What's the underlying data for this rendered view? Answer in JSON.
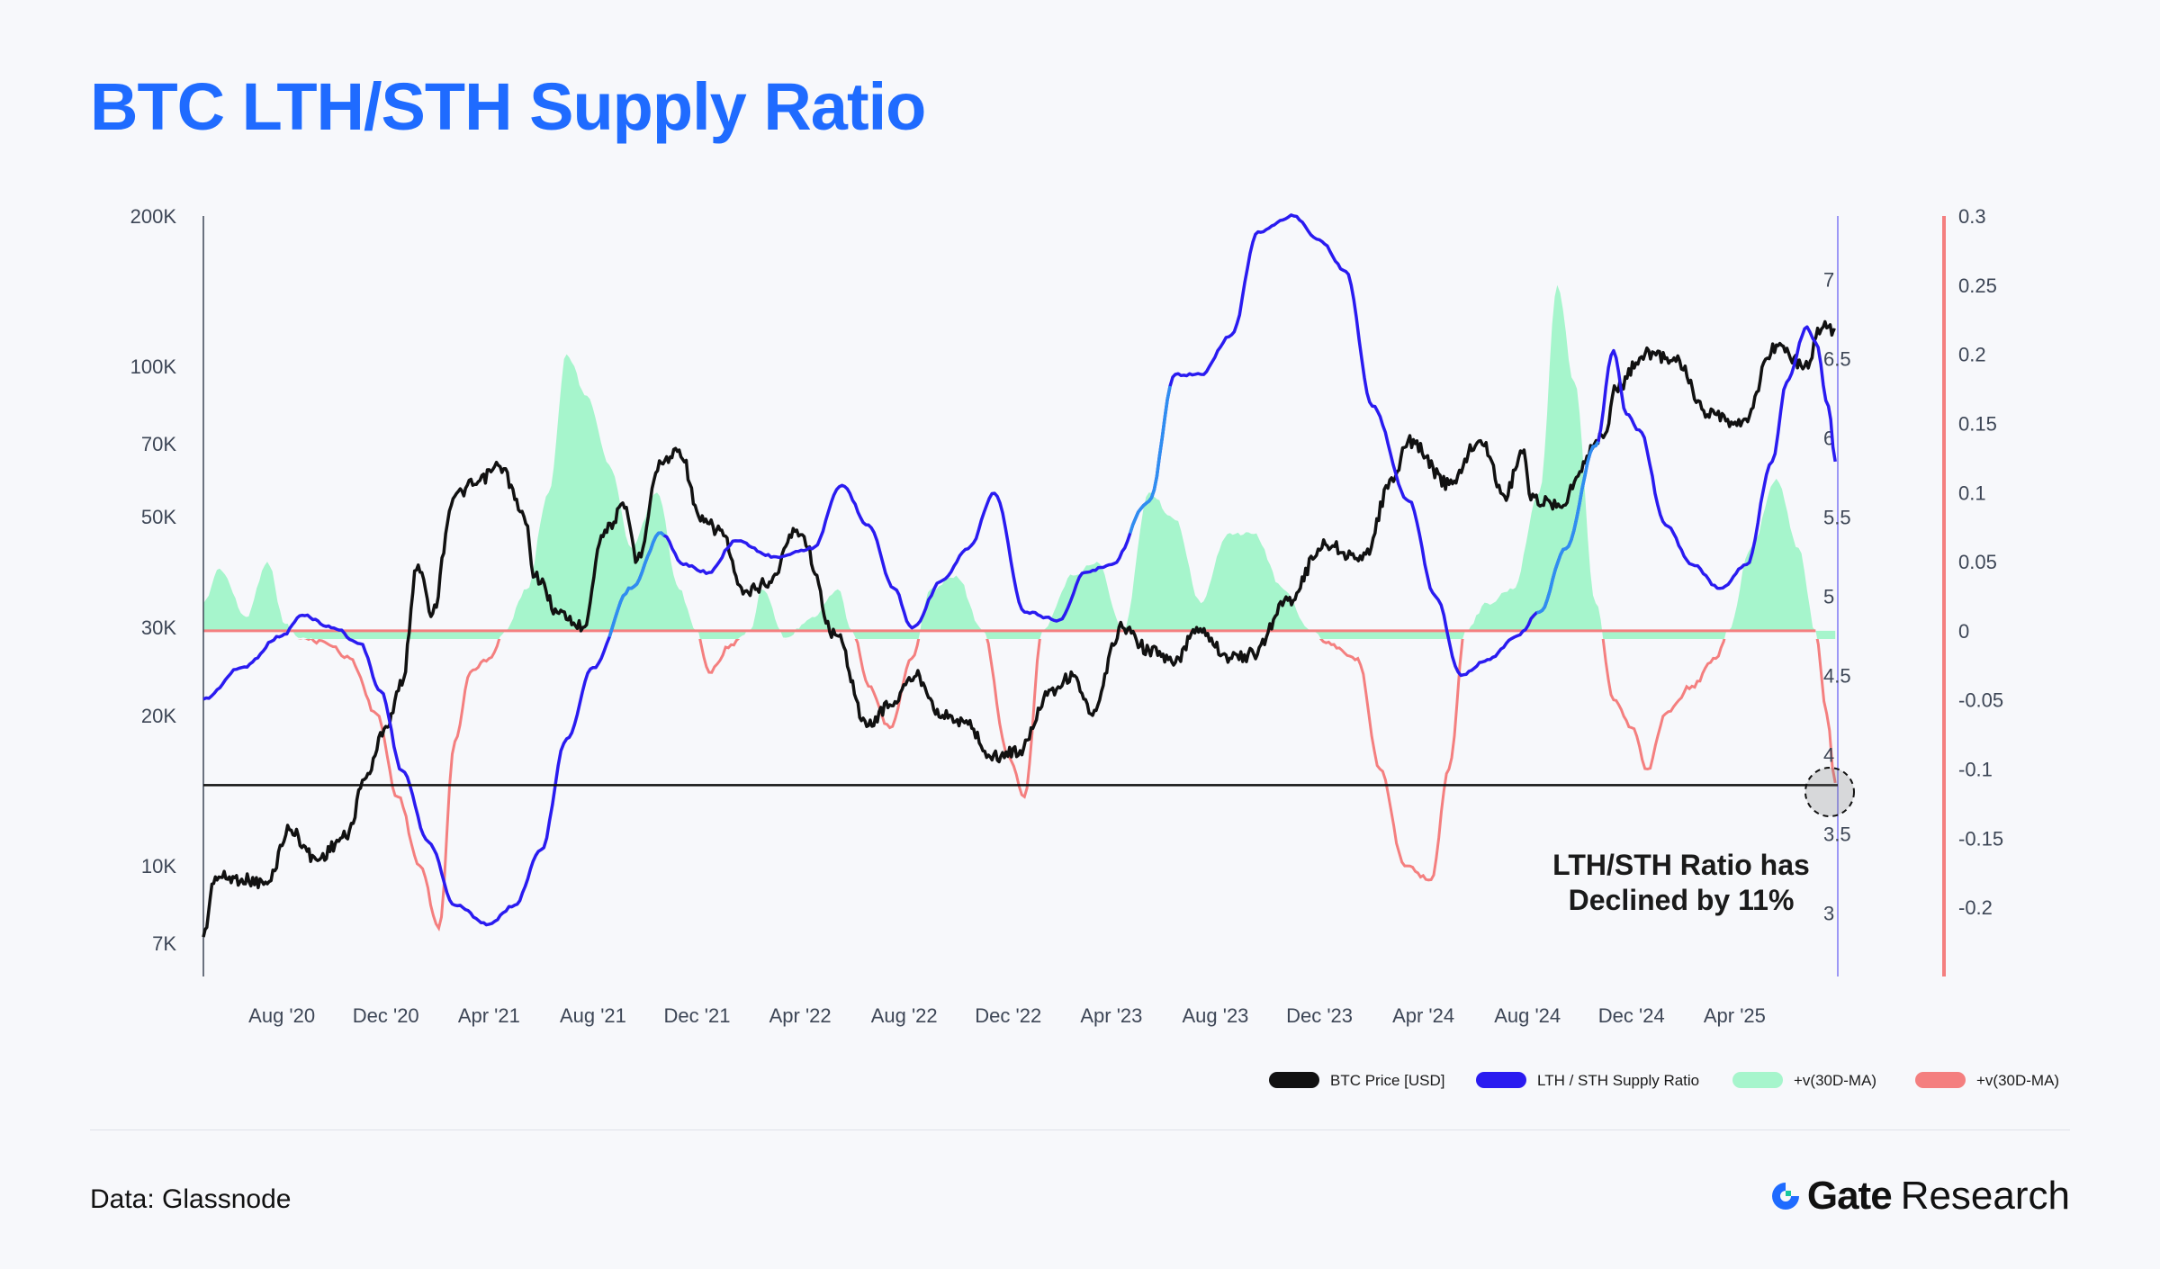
{
  "header": {
    "title": "BTC LTH/STH Supply Ratio"
  },
  "footer": {
    "source": "Data: Glassnode",
    "brand_bold": "Gate",
    "brand_light": "Research"
  },
  "colors": {
    "price": "#111111",
    "ratio": "#2a1bf0",
    "ratio_highlight": "#2f8ef0",
    "momentum_pos": "#a6f5cc",
    "momentum_neg": "#f47f7f",
    "title": "#1f6bff",
    "support_line": "#111111"
  },
  "chart_data": {
    "type": "line",
    "title": "BTC LTH/STH Supply Ratio",
    "x_range": [
      "2020-05-01",
      "2025-07-31"
    ],
    "x_tick_labels": [
      "Aug '20",
      "Dec '20",
      "Apr '21",
      "Aug '21",
      "Dec '21",
      "Apr '22",
      "Aug '22",
      "Dec '22",
      "Apr '23",
      "Aug '23",
      "Dec '23",
      "Apr '24",
      "Aug '24",
      "Dec '24",
      "Apr '25"
    ],
    "x_tick_dates": [
      "2020-08-01",
      "2020-12-01",
      "2021-04-01",
      "2021-08-01",
      "2021-12-01",
      "2022-04-01",
      "2022-08-01",
      "2022-12-01",
      "2023-04-01",
      "2023-08-01",
      "2023-12-01",
      "2024-04-01",
      "2024-08-01",
      "2024-12-01",
      "2025-04-01"
    ],
    "axes": {
      "left": {
        "scale": "log",
        "range": [
          6000,
          200000
        ],
        "tick_labels": [
          "200K",
          "100K",
          "70K",
          "50K",
          "30K",
          "20K",
          "10K",
          "7K"
        ],
        "tick_values": [
          200000,
          100000,
          70000,
          50000,
          30000,
          20000,
          10000,
          7000
        ]
      },
      "right_inner": {
        "scale": "linear",
        "range": [
          2.6,
          7.4
        ],
        "tick_labels": [
          "7",
          "6.5",
          "6",
          "5.5",
          "5",
          "4.5",
          "4",
          "3.5",
          "3"
        ],
        "tick_values": [
          7,
          6.5,
          6,
          5.5,
          5,
          4.5,
          4,
          3.5,
          3
        ]
      },
      "right_outer": {
        "scale": "linear",
        "range": [
          -0.25,
          0.3
        ],
        "tick_labels": [
          "0.3",
          "0.25",
          "0.2",
          "0.15",
          "0.1",
          "0.05",
          "0",
          "-0.05",
          "-0.1",
          "-0.15",
          "-0.2"
        ],
        "tick_values": [
          0.3,
          0.25,
          0.2,
          0.15,
          0.1,
          0.05,
          0,
          -0.05,
          -0.1,
          -0.15,
          -0.2
        ]
      }
    },
    "grid": false,
    "legend_position": "bottom-right",
    "legend": [
      {
        "label": "BTC Price [USD]",
        "color": "#111111"
      },
      {
        "label": "LTH / STH Supply Ratio",
        "color": "#2a1bf0"
      },
      {
        "label": "+v(30D-MA)",
        "color": "#a6f5cc"
      },
      {
        "label": "+v(30D-MA)",
        "color": "#f47f7f"
      }
    ],
    "annotation": {
      "lines": [
        "LTH/STH Ratio has",
        "Declined by 11%"
      ]
    },
    "support_level": 14500,
    "series": [
      {
        "name": "BTC Price [USD]",
        "axis": "left",
        "points": [
          [
            "2020-05-01",
            7200
          ],
          [
            "2020-05-15",
            9500
          ],
          [
            "2020-06-15",
            9400
          ],
          [
            "2020-07-15",
            9200
          ],
          [
            "2020-08-10",
            11800
          ],
          [
            "2020-09-10",
            10300
          ],
          [
            "2020-10-15",
            11400
          ],
          [
            "2020-11-10",
            15300
          ],
          [
            "2020-12-01",
            19000
          ],
          [
            "2020-12-20",
            23000
          ],
          [
            "2021-01-08",
            40000
          ],
          [
            "2021-01-25",
            32000
          ],
          [
            "2021-02-20",
            55000
          ],
          [
            "2021-03-15",
            58000
          ],
          [
            "2021-04-14",
            63000
          ],
          [
            "2021-05-12",
            50000
          ],
          [
            "2021-05-25",
            38000
          ],
          [
            "2021-06-22",
            32000
          ],
          [
            "2021-07-20",
            30000
          ],
          [
            "2021-08-15",
            47000
          ],
          [
            "2021-09-07",
            52000
          ],
          [
            "2021-09-22",
            41000
          ],
          [
            "2021-10-20",
            64000
          ],
          [
            "2021-11-10",
            68000
          ],
          [
            "2021-12-05",
            49000
          ],
          [
            "2021-12-28",
            47000
          ],
          [
            "2022-01-24",
            35000
          ],
          [
            "2022-02-24",
            37000
          ],
          [
            "2022-03-28",
            47000
          ],
          [
            "2022-05-12",
            29000
          ],
          [
            "2022-06-18",
            19000
          ],
          [
            "2022-07-15",
            21000
          ],
          [
            "2022-08-15",
            24000
          ],
          [
            "2022-09-15",
            20000
          ],
          [
            "2022-10-15",
            19200
          ],
          [
            "2022-11-10",
            16500
          ],
          [
            "2022-12-15",
            17000
          ],
          [
            "2023-01-20",
            22500
          ],
          [
            "2023-02-15",
            24000
          ],
          [
            "2023-03-10",
            20000
          ],
          [
            "2023-04-14",
            30000
          ],
          [
            "2023-05-15",
            27000
          ],
          [
            "2023-06-15",
            25500
          ],
          [
            "2023-07-10",
            30000
          ],
          [
            "2023-08-20",
            26000
          ],
          [
            "2023-09-15",
            26500
          ],
          [
            "2023-10-25",
            34000
          ],
          [
            "2023-12-08",
            44000
          ],
          [
            "2024-01-20",
            41000
          ],
          [
            "2024-02-28",
            60000
          ],
          [
            "2024-03-14",
            71000
          ],
          [
            "2024-05-01",
            58000
          ],
          [
            "2024-06-07",
            71000
          ],
          [
            "2024-07-05",
            55000
          ],
          [
            "2024-07-28",
            68000
          ],
          [
            "2024-08-05",
            54000
          ],
          [
            "2024-09-06",
            53000
          ],
          [
            "2024-10-29",
            72000
          ],
          [
            "2024-11-13",
            90000
          ],
          [
            "2024-12-17",
            106000
          ],
          [
            "2025-01-20",
            104000
          ],
          [
            "2025-02-28",
            80000
          ],
          [
            "2025-04-08",
            76000
          ],
          [
            "2025-05-22",
            110000
          ],
          [
            "2025-06-22",
            100000
          ],
          [
            "2025-07-14",
            120000
          ],
          [
            "2025-07-28",
            118000
          ]
        ]
      },
      {
        "name": "LTH / STH Supply Ratio",
        "axis": "right_inner",
        "points": [
          [
            "2020-05-01",
            4.35
          ],
          [
            "2020-06-15",
            4.55
          ],
          [
            "2020-08-01",
            4.75
          ],
          [
            "2020-08-25",
            4.88
          ],
          [
            "2020-10-01",
            4.8
          ],
          [
            "2020-11-01",
            4.7
          ],
          [
            "2020-11-25",
            4.4
          ],
          [
            "2020-12-20",
            3.9
          ],
          [
            "2021-01-20",
            3.45
          ],
          [
            "2021-02-20",
            3.05
          ],
          [
            "2021-04-01",
            2.93
          ],
          [
            "2021-05-01",
            3.05
          ],
          [
            "2021-06-01",
            3.4
          ],
          [
            "2021-07-01",
            4.1
          ],
          [
            "2021-08-01",
            4.55
          ],
          [
            "2021-09-15",
            5.05
          ],
          [
            "2021-10-20",
            5.4
          ],
          [
            "2021-11-15",
            5.2
          ],
          [
            "2021-12-15",
            5.15
          ],
          [
            "2022-01-15",
            5.35
          ],
          [
            "2022-03-01",
            5.25
          ],
          [
            "2022-04-15",
            5.3
          ],
          [
            "2022-05-20",
            5.7
          ],
          [
            "2022-06-20",
            5.45
          ],
          [
            "2022-07-20",
            5.05
          ],
          [
            "2022-08-10",
            4.8
          ],
          [
            "2022-09-15",
            5.1
          ],
          [
            "2022-10-15",
            5.3
          ],
          [
            "2022-11-15",
            5.65
          ],
          [
            "2022-12-20",
            4.9
          ],
          [
            "2023-01-30",
            4.85
          ],
          [
            "2023-03-01",
            5.15
          ],
          [
            "2023-04-01",
            5.2
          ],
          [
            "2023-05-15",
            5.6
          ],
          [
            "2023-06-15",
            6.4
          ],
          [
            "2023-07-15",
            6.4
          ],
          [
            "2023-08-20",
            6.65
          ],
          [
            "2023-09-20",
            7.3
          ],
          [
            "2023-11-01",
            7.4
          ],
          [
            "2023-12-01",
            7.25
          ],
          [
            "2024-01-01",
            7.05
          ],
          [
            "2024-02-01",
            6.2
          ],
          [
            "2024-03-15",
            5.6
          ],
          [
            "2024-04-15",
            5.0
          ],
          [
            "2024-05-15",
            4.5
          ],
          [
            "2024-06-15",
            4.6
          ],
          [
            "2024-07-20",
            4.75
          ],
          [
            "2024-08-15",
            4.9
          ],
          [
            "2024-09-15",
            5.3
          ],
          [
            "2024-10-20",
            5.95
          ],
          [
            "2024-11-10",
            6.55
          ],
          [
            "2024-11-25",
            6.15
          ],
          [
            "2024-12-10",
            6.05
          ],
          [
            "2025-01-10",
            5.45
          ],
          [
            "2025-02-10",
            5.2
          ],
          [
            "2025-03-15",
            5.05
          ],
          [
            "2025-04-15",
            5.2
          ],
          [
            "2025-05-15",
            5.85
          ],
          [
            "2025-06-01",
            6.35
          ],
          [
            "2025-06-25",
            6.7
          ],
          [
            "2025-07-05",
            6.6
          ],
          [
            "2025-07-20",
            6.2
          ],
          [
            "2025-07-28",
            5.85
          ]
        ]
      },
      {
        "name": "+v(30D-MA)",
        "axis": "right_outer",
        "color_positive": "#a6f5cc",
        "color_negative": "#f47f7f",
        "points": [
          [
            "2020-05-01",
            0.02
          ],
          [
            "2020-05-20",
            0.045
          ],
          [
            "2020-06-20",
            0.01
          ],
          [
            "2020-07-15",
            0.05
          ],
          [
            "2020-08-05",
            0.005
          ],
          [
            "2020-08-20",
            -0.005
          ],
          [
            "2020-09-20",
            -0.008
          ],
          [
            "2020-10-20",
            -0.02
          ],
          [
            "2020-11-20",
            -0.06
          ],
          [
            "2020-12-15",
            -0.12
          ],
          [
            "2021-01-10",
            -0.17
          ],
          [
            "2021-02-01",
            -0.215
          ],
          [
            "2021-02-20",
            -0.08
          ],
          [
            "2021-03-10",
            -0.03
          ],
          [
            "2021-04-01",
            -0.02
          ],
          [
            "2021-04-20",
            0.0
          ],
          [
            "2021-05-15",
            0.03
          ],
          [
            "2021-06-10",
            0.1
          ],
          [
            "2021-07-01",
            0.2
          ],
          [
            "2021-07-25",
            0.17
          ],
          [
            "2021-08-20",
            0.12
          ],
          [
            "2021-09-15",
            0.06
          ],
          [
            "2021-10-15",
            0.1
          ],
          [
            "2021-11-10",
            0.03
          ],
          [
            "2021-11-30",
            0.0
          ],
          [
            "2021-12-15",
            -0.03
          ],
          [
            "2022-01-10",
            -0.01
          ],
          [
            "2022-02-01",
            0.0
          ],
          [
            "2022-02-15",
            0.03
          ],
          [
            "2022-03-15",
            -0.005
          ],
          [
            "2022-04-15",
            0.01
          ],
          [
            "2022-05-15",
            0.03
          ],
          [
            "2022-06-01",
            0.0
          ],
          [
            "2022-06-20",
            -0.04
          ],
          [
            "2022-07-15",
            -0.07
          ],
          [
            "2022-08-10",
            -0.02
          ],
          [
            "2022-09-01",
            0.03
          ],
          [
            "2022-10-01",
            0.04
          ],
          [
            "2022-11-01",
            0.0
          ],
          [
            "2022-12-01",
            -0.09
          ],
          [
            "2022-12-20",
            -0.12
          ],
          [
            "2023-01-10",
            0.0
          ],
          [
            "2023-02-15",
            0.04
          ],
          [
            "2023-03-15",
            0.05
          ],
          [
            "2023-04-15",
            0.0
          ],
          [
            "2023-05-15",
            0.1
          ],
          [
            "2023-06-15",
            0.08
          ],
          [
            "2023-07-15",
            0.02
          ],
          [
            "2023-08-15",
            0.07
          ],
          [
            "2023-09-15",
            0.07
          ],
          [
            "2023-10-20",
            0.03
          ],
          [
            "2023-11-20",
            0.0
          ],
          [
            "2023-12-15",
            -0.01
          ],
          [
            "2024-01-15",
            -0.02
          ],
          [
            "2024-02-10",
            -0.1
          ],
          [
            "2024-03-10",
            -0.17
          ],
          [
            "2024-04-10",
            -0.18
          ],
          [
            "2024-05-01",
            -0.1
          ],
          [
            "2024-05-20",
            0.0
          ],
          [
            "2024-06-15",
            0.02
          ],
          [
            "2024-07-15",
            0.03
          ],
          [
            "2024-08-15",
            0.1
          ],
          [
            "2024-09-05",
            0.25
          ],
          [
            "2024-09-25",
            0.18
          ],
          [
            "2024-10-20",
            0.02
          ],
          [
            "2024-11-10",
            -0.05
          ],
          [
            "2024-12-01",
            -0.07
          ],
          [
            "2024-12-20",
            -0.1
          ],
          [
            "2025-01-10",
            -0.06
          ],
          [
            "2025-02-10",
            -0.04
          ],
          [
            "2025-03-10",
            -0.02
          ],
          [
            "2025-03-25",
            0.0
          ],
          [
            "2025-04-20",
            0.06
          ],
          [
            "2025-05-20",
            0.11
          ],
          [
            "2025-06-15",
            0.06
          ],
          [
            "2025-07-05",
            0.0
          ],
          [
            "2025-07-18",
            -0.06
          ],
          [
            "2025-07-28",
            -0.11
          ]
        ]
      }
    ]
  }
}
